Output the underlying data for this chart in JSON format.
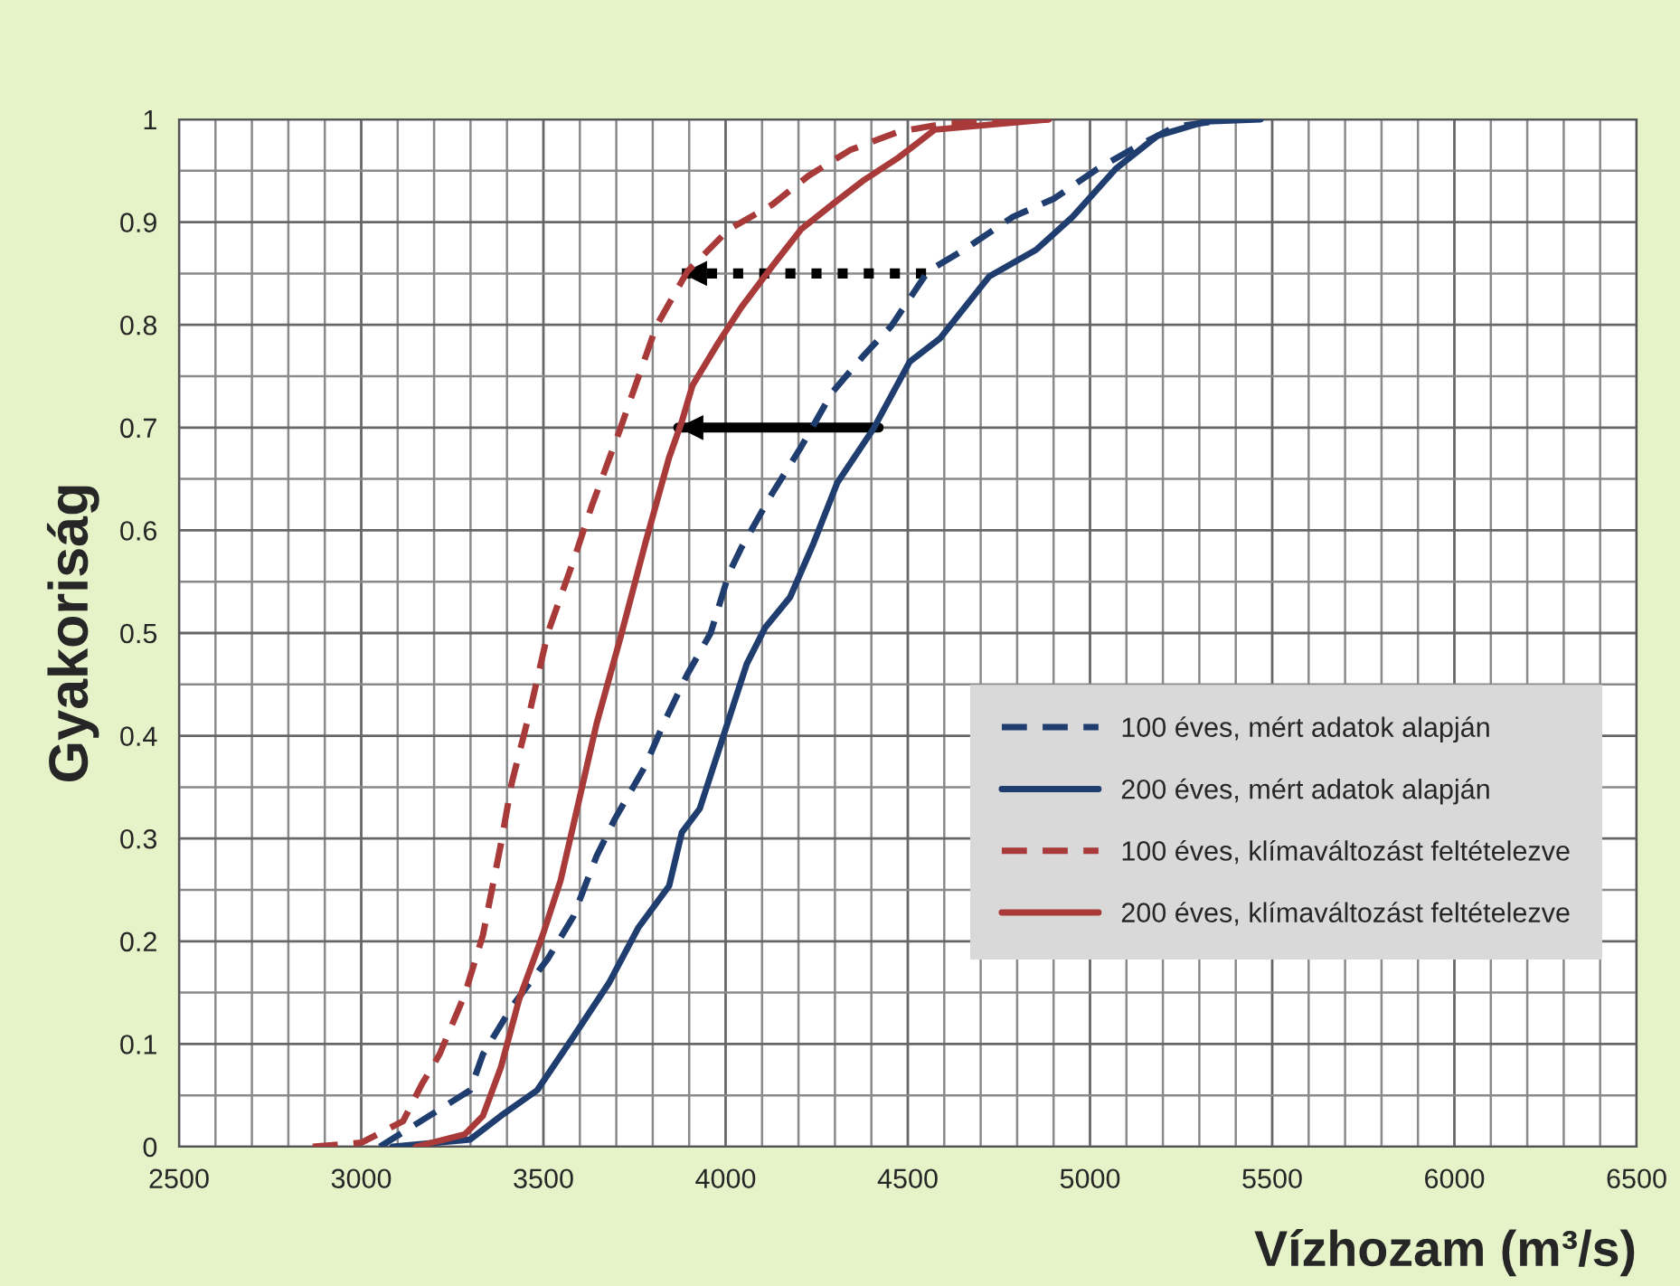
{
  "chart_data": {
    "type": "line",
    "xlabel": "Vízhozam (m³/s)",
    "ylabel": "Gyakoriság",
    "xlim": [
      2500,
      6500
    ],
    "ylim": [
      0,
      1
    ],
    "xticks": [
      2500,
      3000,
      3500,
      4000,
      4500,
      5000,
      5500,
      6000,
      6500
    ],
    "yticks": [
      0,
      0.1,
      0.2,
      0.3,
      0.4,
      0.5,
      0.6,
      0.7,
      0.8,
      0.9,
      1
    ],
    "grid": true,
    "legend": "bottom right",
    "marker": "none",
    "series": [
      {
        "name": "100 éves, mért adatok alapján",
        "color": "#1f3d6e",
        "line_style": "dashed",
        "x": [
          3051,
          3299,
          3334,
          3413,
          3512,
          3582,
          3646,
          3696,
          3780,
          3830,
          3895,
          3959,
          4009,
          4043,
          4128,
          4207,
          4292,
          4376,
          4455,
          4555,
          4654,
          4788,
          4902,
          5021,
          5135,
          5235,
          5383
        ],
        "values": [
          0,
          0.055,
          0.09,
          0.136,
          0.183,
          0.224,
          0.283,
          0.319,
          0.371,
          0.412,
          0.46,
          0.5,
          0.558,
          0.583,
          0.636,
          0.681,
          0.734,
          0.769,
          0.799,
          0.852,
          0.873,
          0.905,
          0.923,
          0.952,
          0.975,
          0.993,
          1
        ]
      },
      {
        "name": "200 éves, mért adatok alapján",
        "color": "#1f3d6e",
        "line_style": "solid",
        "x": [
          3086,
          3299,
          3383,
          3483,
          3582,
          3681,
          3760,
          3845,
          3880,
          3929,
          3994,
          4058,
          4108,
          4177,
          4242,
          4306,
          4406,
          4505,
          4589,
          4723,
          4852,
          4952,
          5071,
          5185,
          5319,
          5468
        ],
        "values": [
          0,
          0.007,
          0.03,
          0.055,
          0.107,
          0.16,
          0.213,
          0.254,
          0.306,
          0.329,
          0.4,
          0.47,
          0.505,
          0.535,
          0.588,
          0.646,
          0.699,
          0.764,
          0.787,
          0.847,
          0.873,
          0.905,
          0.952,
          0.984,
          0.998,
          1
        ]
      },
      {
        "name": "100 éves, klímaváltozást feltételezve",
        "color": "#a83a3a",
        "line_style": "dashed",
        "x": [
          2867,
          3001,
          3115,
          3165,
          3215,
          3284,
          3334,
          3383,
          3413,
          3463,
          3512,
          3582,
          3632,
          3711,
          3810,
          3895,
          4009,
          4128,
          4227,
          4341,
          4475,
          4604,
          4887
        ],
        "values": [
          0,
          0.004,
          0.025,
          0.06,
          0.09,
          0.148,
          0.206,
          0.294,
          0.354,
          0.424,
          0.5,
          0.57,
          0.623,
          0.699,
          0.799,
          0.852,
          0.893,
          0.917,
          0.945,
          0.97,
          0.988,
          0.996,
          1
        ]
      },
      {
        "name": "200 éves, klímaváltozást feltételezve",
        "color": "#a83a3a",
        "line_style": "solid",
        "x": [
          3150,
          3284,
          3334,
          3383,
          3433,
          3498,
          3547,
          3597,
          3646,
          3711,
          3780,
          3845,
          3880,
          3909,
          3979,
          4043,
          4128,
          4207,
          4292,
          4376,
          4475,
          4574,
          4887
        ],
        "values": [
          0,
          0.012,
          0.03,
          0.077,
          0.143,
          0.206,
          0.259,
          0.336,
          0.412,
          0.495,
          0.588,
          0.671,
          0.706,
          0.741,
          0.782,
          0.817,
          0.857,
          0.893,
          0.917,
          0.94,
          0.963,
          0.99,
          1
        ]
      },
      {
        "color": "#000000",
        "line_style": "dotted",
        "x": [
          4550,
          3880
        ],
        "values": [
          0.85,
          0.85
        ]
      },
      {
        "color": "#000000",
        "line_style": "solid",
        "x": [
          4420,
          3870
        ],
        "values": [
          0.7,
          0.7
        ]
      }
    ]
  }
}
